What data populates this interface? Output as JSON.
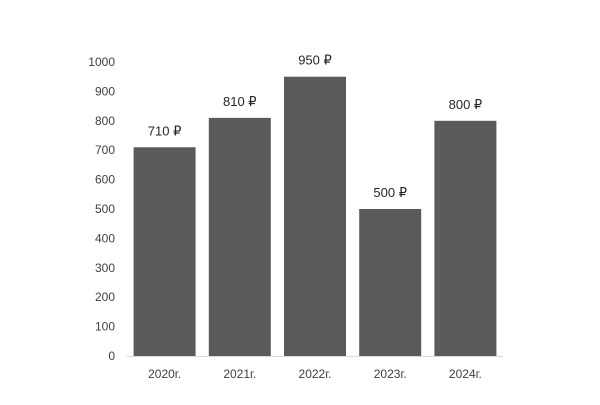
{
  "chart_data": {
    "type": "bar",
    "title": "",
    "xlabel": "",
    "ylabel": "",
    "categories": [
      "2020г.",
      "2021г.",
      "2022г.",
      "2023г.",
      "2024г."
    ],
    "values": [
      710,
      810,
      950,
      500,
      800
    ],
    "data_labels": [
      "710 ₽",
      "810 ₽",
      "950 ₽",
      "500 ₽",
      "800 ₽"
    ],
    "y_ticks": [
      "0",
      "100",
      "200",
      "300",
      "400",
      "500",
      "600",
      "700",
      "800",
      "900",
      "1000"
    ],
    "ylim": [
      0,
      1000
    ],
    "grid": false,
    "legend": "none",
    "colors": {
      "bar": "#5a5a5a",
      "axis": "#d9d9d9",
      "tick_text": "#404040",
      "label_text": "#262626"
    }
  }
}
